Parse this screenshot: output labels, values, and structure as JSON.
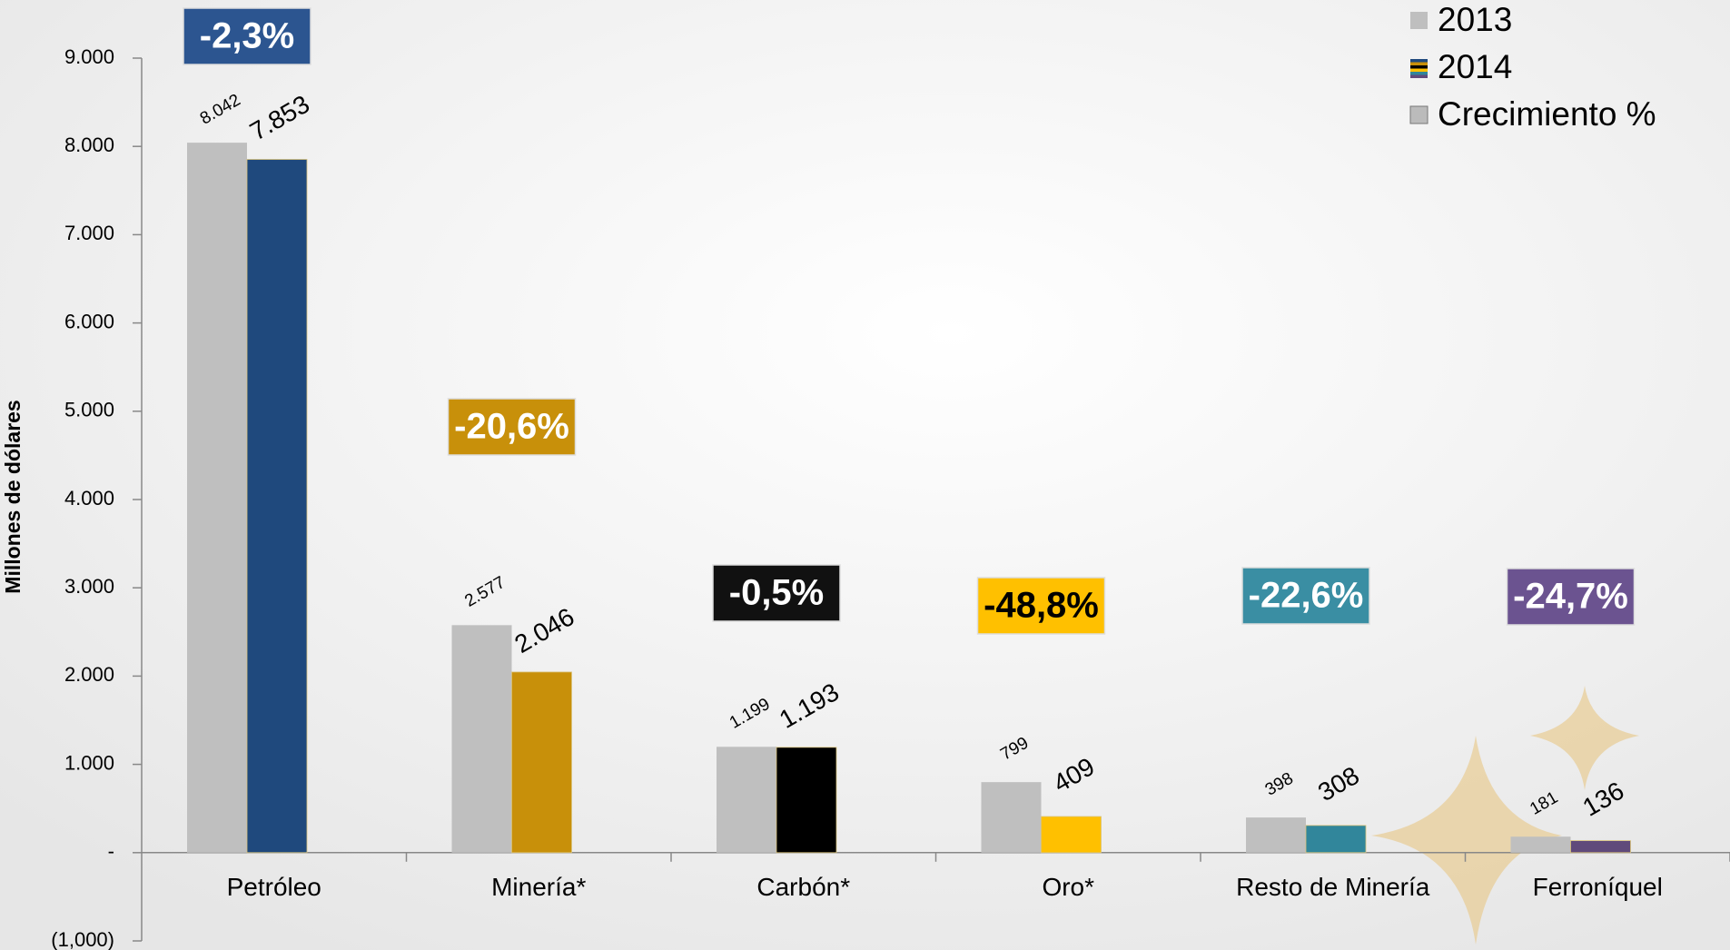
{
  "chart_data": {
    "type": "bar",
    "y_label": "Millones de dólares",
    "categories": [
      "Petróleo",
      "Minería*",
      "Carbón*",
      "Oro*",
      "Resto de Minería",
      "Ferroníquel"
    ],
    "series": [
      {
        "name": "2013",
        "color": "#bfbfbf",
        "values": [
          8042,
          2577,
          1199,
          799,
          398,
          181
        ],
        "value_labels": [
          "8.042",
          "2.577",
          "1.199",
          "799",
          "398",
          "181"
        ]
      },
      {
        "name": "2014",
        "colors": [
          "#1f497d",
          "#c8900a",
          "#000000",
          "#ffc000",
          "#31869b",
          "#604a7b"
        ],
        "values": [
          7853,
          2046,
          1193,
          409,
          308,
          136
        ],
        "value_labels": [
          "7.853",
          "2.046",
          "1.193",
          "409",
          "308",
          "136"
        ]
      },
      {
        "name": "Crecimiento %",
        "colors": [
          "#2c5590",
          "#c8900a",
          "#111111",
          "#ffc000",
          "#3a8ea3",
          "#6b5390"
        ],
        "text_colors": [
          "#ffffff",
          "#ffffff",
          "#ffffff",
          "#000000",
          "#ffffff",
          "#ffffff"
        ],
        "values": [
          -2.3,
          -20.6,
          -0.5,
          -48.8,
          -22.6,
          -24.7
        ],
        "value_labels": [
          "-2,3%",
          "-20,6%",
          "-0,5%",
          "-48,8%",
          "-22,6%",
          "-24,7%"
        ]
      }
    ],
    "ylim": [
      -1000,
      9000
    ],
    "yticks": [
      {
        "value": -1000,
        "label": "(1,000)"
      },
      {
        "value": 0,
        "label": "-"
      },
      {
        "value": 1000,
        "label": "1.000"
      },
      {
        "value": 2000,
        "label": "2.000"
      },
      {
        "value": 3000,
        "label": "3.000"
      },
      {
        "value": 4000,
        "label": "4.000"
      },
      {
        "value": 5000,
        "label": "5.000"
      },
      {
        "value": 6000,
        "label": "6.000"
      },
      {
        "value": 7000,
        "label": "7.000"
      },
      {
        "value": 8000,
        "label": "8.000"
      },
      {
        "value": 9000,
        "label": "9.000"
      }
    ],
    "legend": "top-right"
  }
}
